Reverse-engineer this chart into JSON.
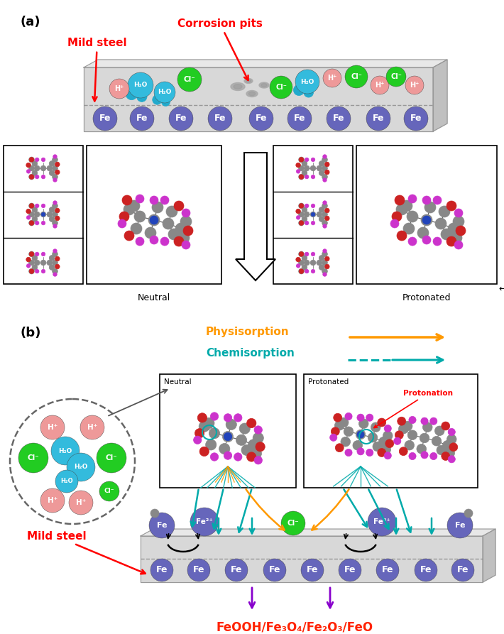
{
  "fig_width": 7.1,
  "fig_height": 8.93,
  "dpi": 100,
  "bg_color": "#ffffff",
  "label_a": "(a)",
  "label_b": "(b)",
  "red_color": "#ff0000",
  "Fe_color": "#6666bb",
  "Fe_dark": "#5555aa",
  "H2O_color": "#33bbdd",
  "H2O_dark": "#22aacc",
  "Cl_color": "#22cc22",
  "Hplus_color": "#ee9999",
  "neutral_label": "Neutral",
  "protonated_label": "Protonated",
  "physisorption_color": "#ff9900",
  "chemisorption_color": "#00aaaa",
  "feooh_color": "#ff2200",
  "arrow_purple": "#8800cc",
  "plate_face": "#d8d8d8",
  "plate_top": "#e8e8e8",
  "plate_side": "#c0c0c0",
  "plate_edge": "#999999",
  "mol_gray": "#888888",
  "mol_red": "#cc2222",
  "mol_purple": "#cc33cc",
  "mol_blue": "#2244bb",
  "mol_white": "#dddddd"
}
